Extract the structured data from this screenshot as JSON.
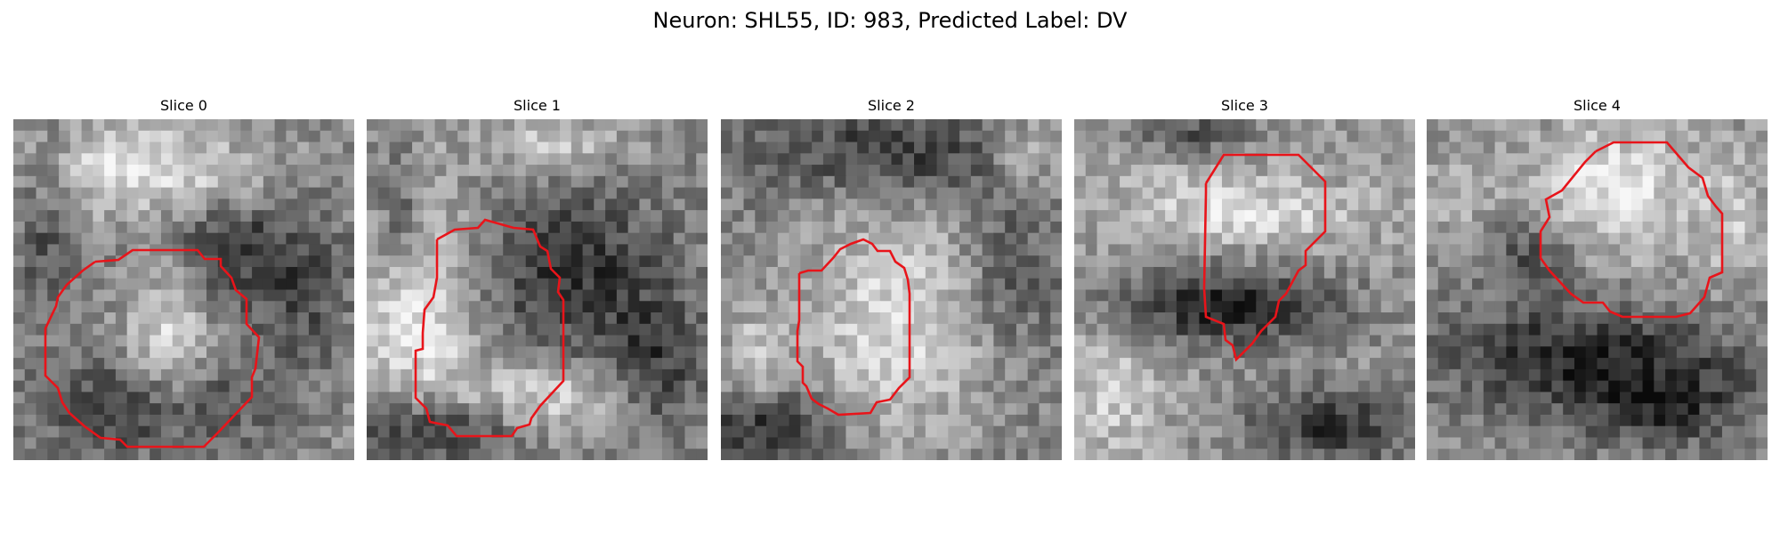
{
  "figure": {
    "title": "Neuron: SHL55, ID: 983, Predicted Label: DV",
    "outline_color": "#e8141a"
  },
  "panels": [
    {
      "title": "Slice 0"
    },
    {
      "title": "Slice 1"
    },
    {
      "title": "Slice 2"
    },
    {
      "title": "Slice 3"
    },
    {
      "title": "Slice 4"
    }
  ]
}
